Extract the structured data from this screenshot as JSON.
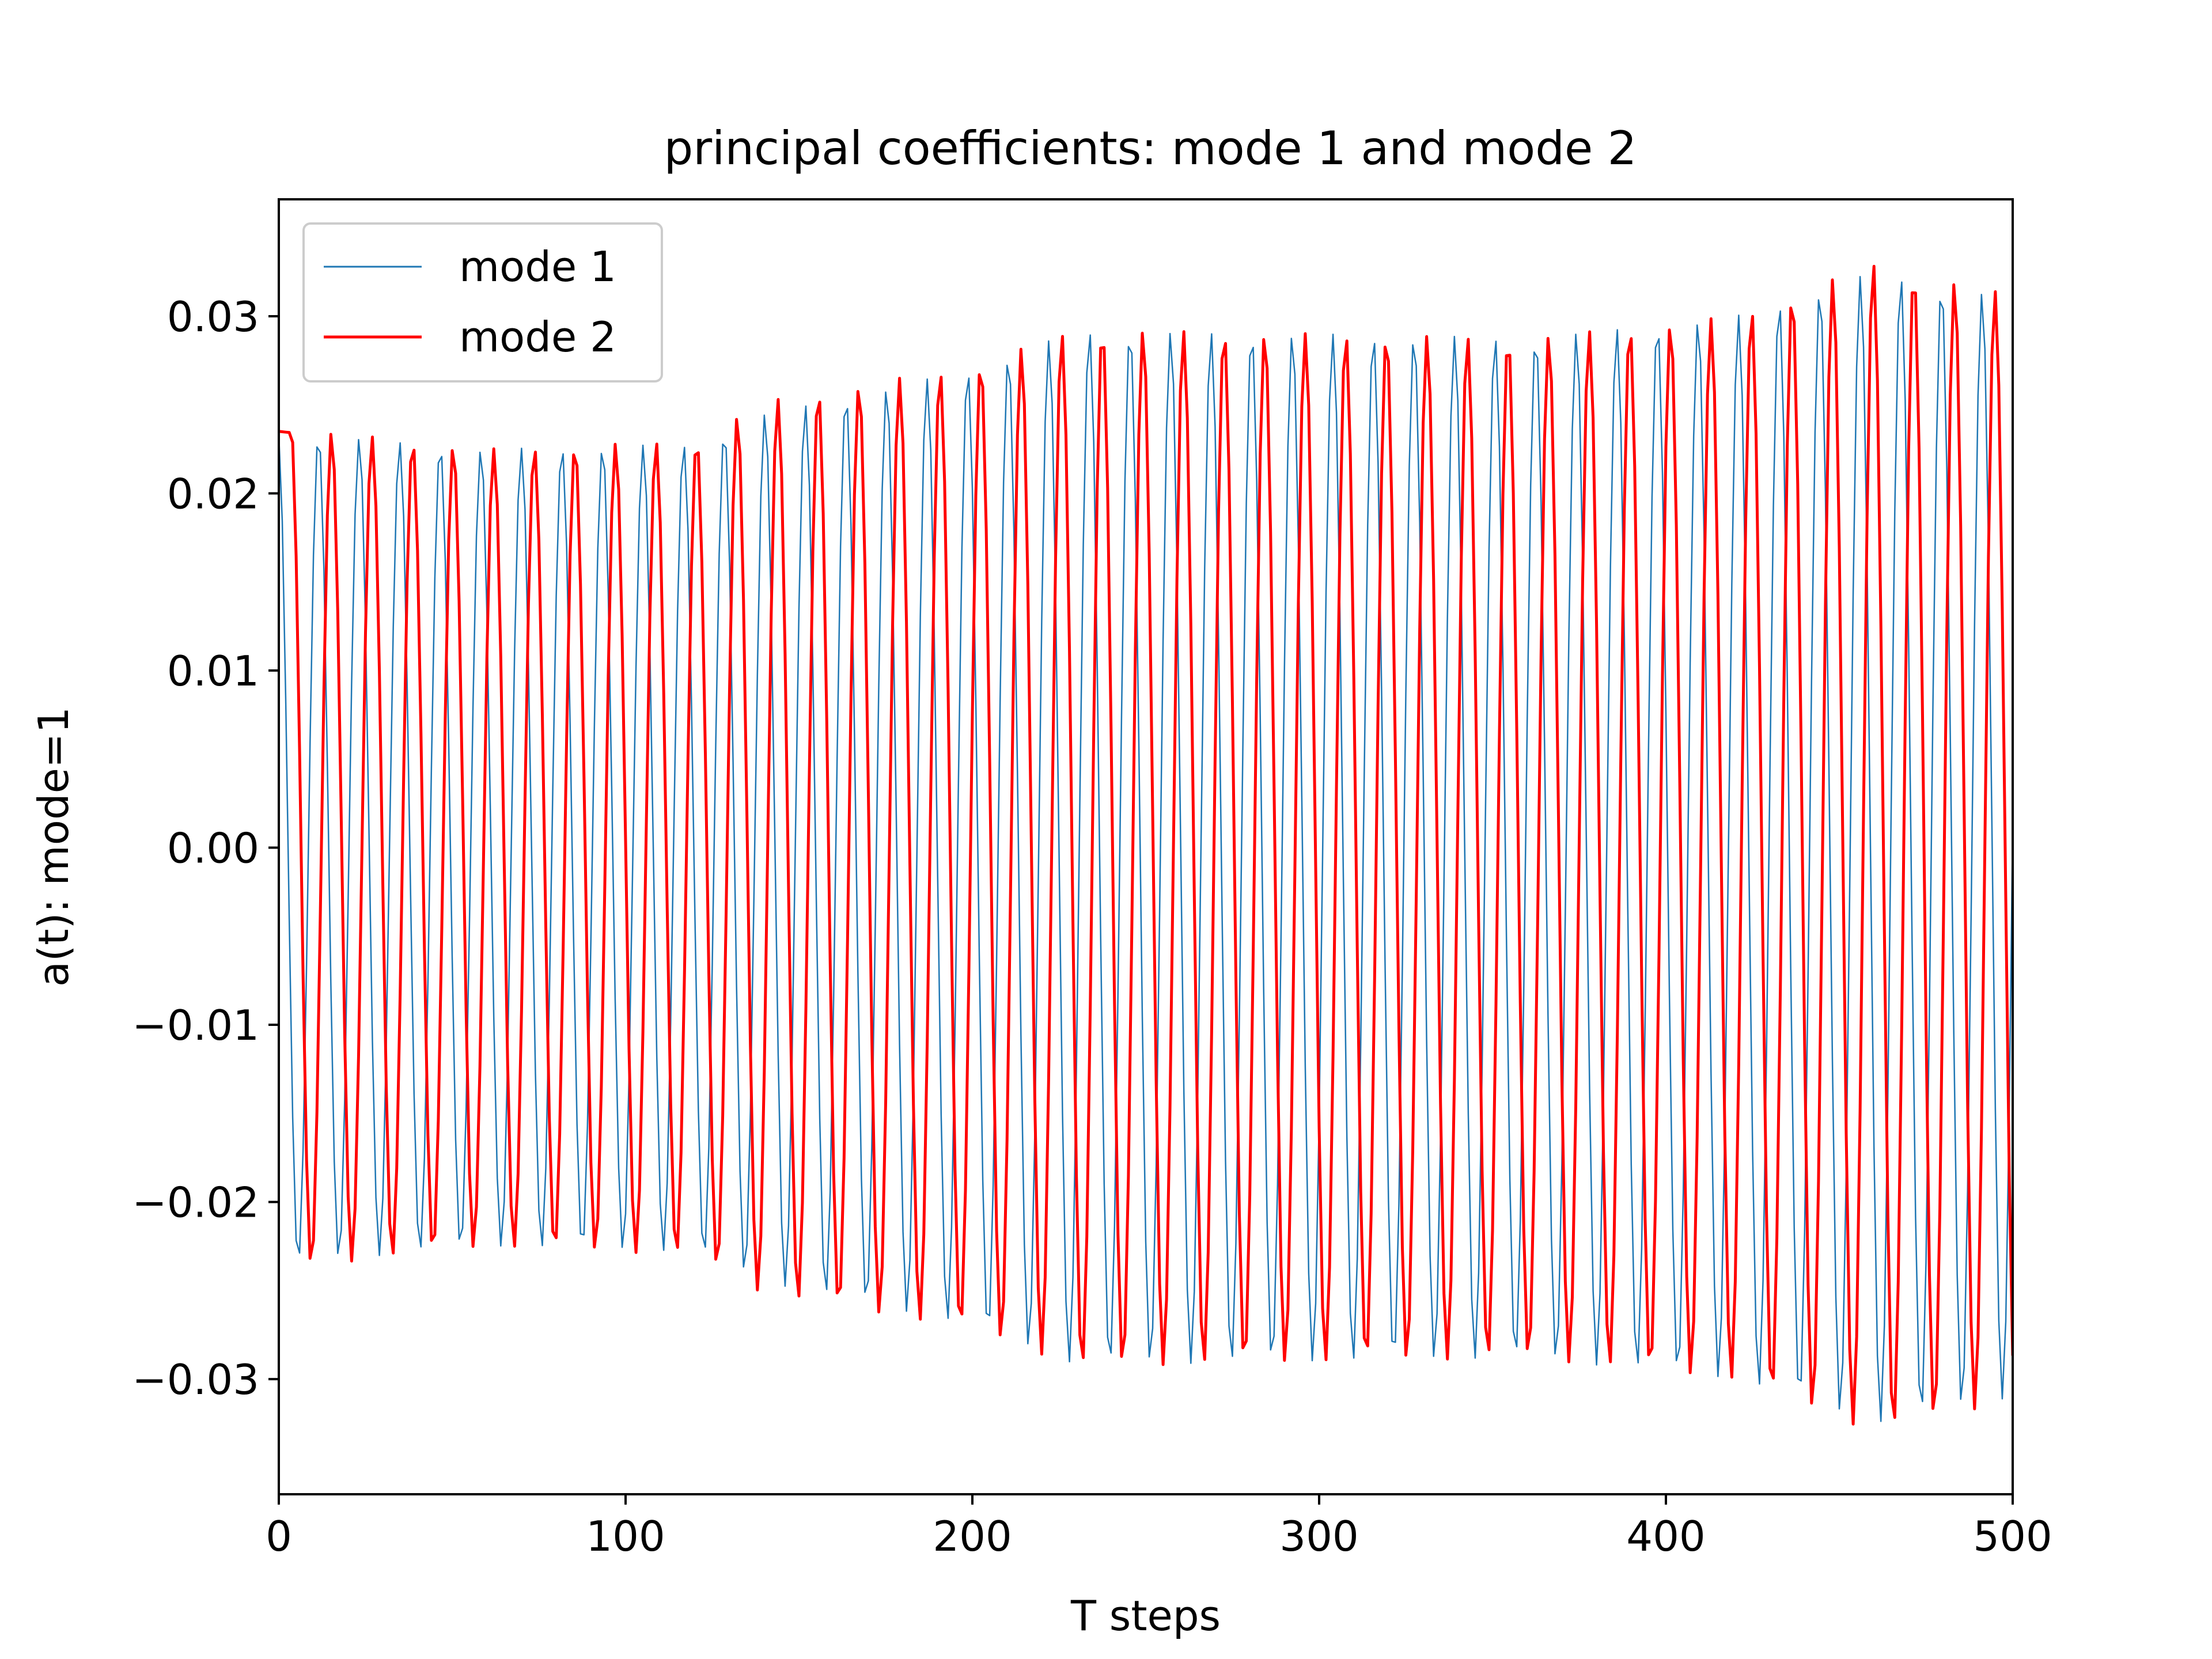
{
  "chart_data": {
    "type": "line",
    "title": "principal coefficients: mode 1 and mode 2",
    "xlabel": "T steps",
    "ylabel": "a(t): mode=1",
    "xlim": [
      0,
      500
    ],
    "ylim": [
      -0.0365,
      0.0366
    ],
    "xticks": [
      0,
      100,
      200,
      300,
      400,
      500
    ],
    "xtick_labels": [
      "0",
      "100",
      "200",
      "300",
      "400",
      "500"
    ],
    "yticks": [
      -0.03,
      -0.02,
      -0.01,
      0.0,
      0.01,
      0.02,
      0.03
    ],
    "ytick_labels": [
      "−0.03",
      "−0.02",
      "−0.01",
      "0.00",
      "0.01",
      "0.02",
      "0.03"
    ],
    "grid": false,
    "legend_position": "top-left",
    "n_points": 501,
    "series": [
      {
        "name": "mode 1",
        "color": "#1f77b4",
        "style": "thin",
        "start_value": 0.0233,
        "period_steps": 11.7,
        "envelope": {
          "t": [
            0,
            60,
            120,
            140,
            200,
            230,
            300,
            360,
            420,
            460,
            500
          ],
          "amplitude": [
            0.0235,
            0.0225,
            0.0228,
            0.0245,
            0.027,
            0.0292,
            0.029,
            0.0288,
            0.03,
            0.0325,
            0.031
          ]
        }
      },
      {
        "name": "mode 2",
        "color": "#ff0000",
        "style": "thick",
        "start_value": 0.0235,
        "period_steps": 11.7,
        "lag_steps": 3.8,
        "envelope": {
          "t": [
            0,
            60,
            120,
            140,
            200,
            230,
            300,
            360,
            420,
            460,
            500
          ],
          "amplitude": [
            0.0238,
            0.0225,
            0.023,
            0.0252,
            0.0272,
            0.0293,
            0.029,
            0.0288,
            0.03,
            0.033,
            0.0312
          ]
        }
      }
    ]
  }
}
